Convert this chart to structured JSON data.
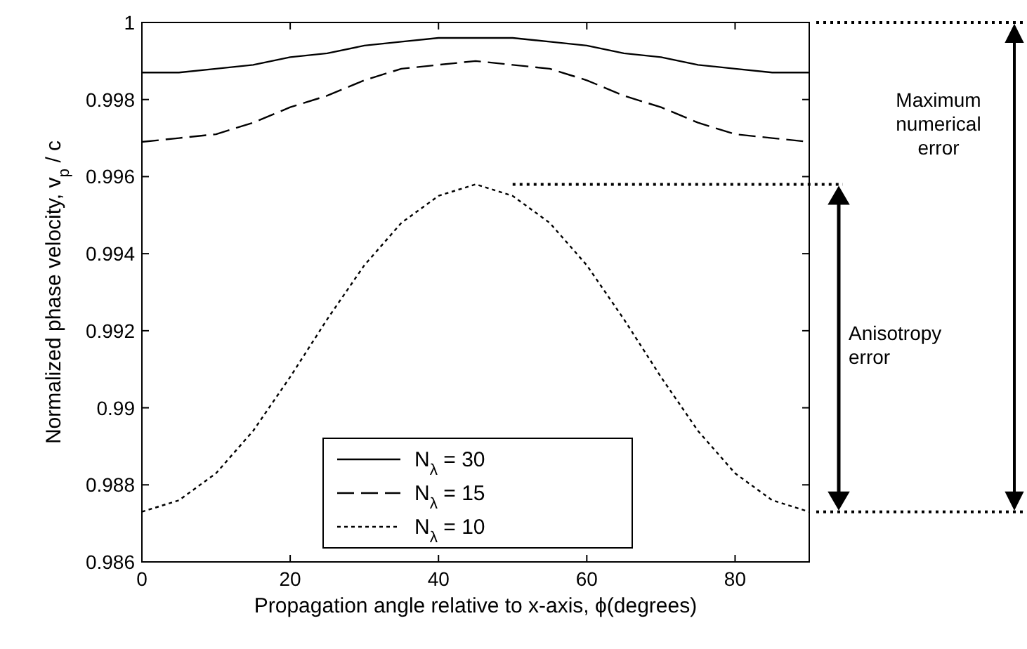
{
  "chart_data": {
    "type": "line",
    "xlabel": "Propagation angle relative to x-axis, ϕ(degrees)",
    "ylabel": "Normalized phase velocity, v$_{p}$ / c",
    "x": [
      0,
      5,
      10,
      15,
      20,
      25,
      30,
      35,
      40,
      45,
      50,
      55,
      60,
      65,
      70,
      75,
      80,
      85,
      90
    ],
    "xlim": [
      0,
      90
    ],
    "xticks": [
      0,
      20,
      40,
      60,
      80
    ],
    "ylim": [
      0.986,
      1
    ],
    "yticks": [
      0.986,
      0.988,
      0.99,
      0.992,
      0.994,
      0.996,
      0.998,
      1
    ],
    "series": [
      {
        "name": "N$_{λ}$ = 30",
        "color": "#000000",
        "line_style": "solid",
        "values": [
          0.9987,
          0.9987,
          0.9988,
          0.9989,
          0.9991,
          0.9992,
          0.9994,
          0.9995,
          0.9996,
          0.9996,
          0.9996,
          0.9995,
          0.9994,
          0.9992,
          0.9991,
          0.9989,
          0.9988,
          0.9987,
          0.9987
        ]
      },
      {
        "name": "N$_{λ}$ = 15",
        "color": "#000000",
        "line_style": "dashed",
        "values": [
          0.9969,
          0.997,
          0.9971,
          0.9974,
          0.9978,
          0.9981,
          0.9985,
          0.9988,
          0.9989,
          0.999,
          0.9989,
          0.9988,
          0.9985,
          0.9981,
          0.9978,
          0.9974,
          0.9971,
          0.997,
          0.9969
        ]
      },
      {
        "name": "N$_{λ}$ = 10",
        "color": "#000000",
        "line_style": "dotted",
        "values": [
          0.9873,
          0.9876,
          0.9883,
          0.9894,
          0.9908,
          0.9923,
          0.9937,
          0.9948,
          0.9955,
          0.9958,
          0.9955,
          0.9948,
          0.9937,
          0.9923,
          0.9908,
          0.9894,
          0.9883,
          0.9876,
          0.9873
        ]
      }
    ],
    "legend": "bottom",
    "grid": false,
    "ref_lines": [
      {
        "axis": "y",
        "value": 0.9958,
        "line_style": "dotted"
      }
    ],
    "annotations": [
      "Maximum numerical error",
      "Anisotropy error"
    ]
  }
}
